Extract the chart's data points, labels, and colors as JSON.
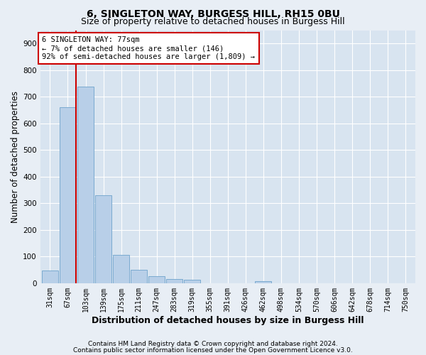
{
  "title": "6, SINGLETON WAY, BURGESS HILL, RH15 0BU",
  "subtitle": "Size of property relative to detached houses in Burgess Hill",
  "xlabel": "Distribution of detached houses by size in Burgess Hill",
  "ylabel": "Number of detached properties",
  "footer_line1": "Contains HM Land Registry data © Crown copyright and database right 2024.",
  "footer_line2": "Contains public sector information licensed under the Open Government Licence v3.0.",
  "bar_labels": [
    "31sqm",
    "67sqm",
    "103sqm",
    "139sqm",
    "175sqm",
    "211sqm",
    "247sqm",
    "283sqm",
    "319sqm",
    "355sqm",
    "391sqm",
    "426sqm",
    "462sqm",
    "498sqm",
    "534sqm",
    "570sqm",
    "606sqm",
    "642sqm",
    "678sqm",
    "714sqm",
    "750sqm"
  ],
  "bar_values": [
    48,
    660,
    738,
    330,
    105,
    50,
    25,
    15,
    12,
    0,
    0,
    0,
    8,
    0,
    0,
    0,
    0,
    0,
    0,
    0,
    0
  ],
  "bar_color": "#b8cfe8",
  "bar_edge_color": "#7aaad0",
  "annotation_line1": "6 SINGLETON WAY: 77sqm",
  "annotation_line2": "← 7% of detached houses are smaller (146)",
  "annotation_line3": "92% of semi-detached houses are larger (1,809) →",
  "vline_color": "#cc0000",
  "ylim": [
    0,
    950
  ],
  "yticks": [
    0,
    100,
    200,
    300,
    400,
    500,
    600,
    700,
    800,
    900
  ],
  "bg_color": "#e8eef5",
  "plot_bg_color": "#d8e4f0",
  "grid_color": "#ffffff",
  "annotation_box_color": "#ffffff",
  "annotation_box_edge": "#cc0000",
  "title_fontsize": 10,
  "subtitle_fontsize": 9,
  "axis_label_fontsize": 8.5,
  "tick_fontsize": 7,
  "annotation_fontsize": 7.5,
  "footer_fontsize": 6.5
}
